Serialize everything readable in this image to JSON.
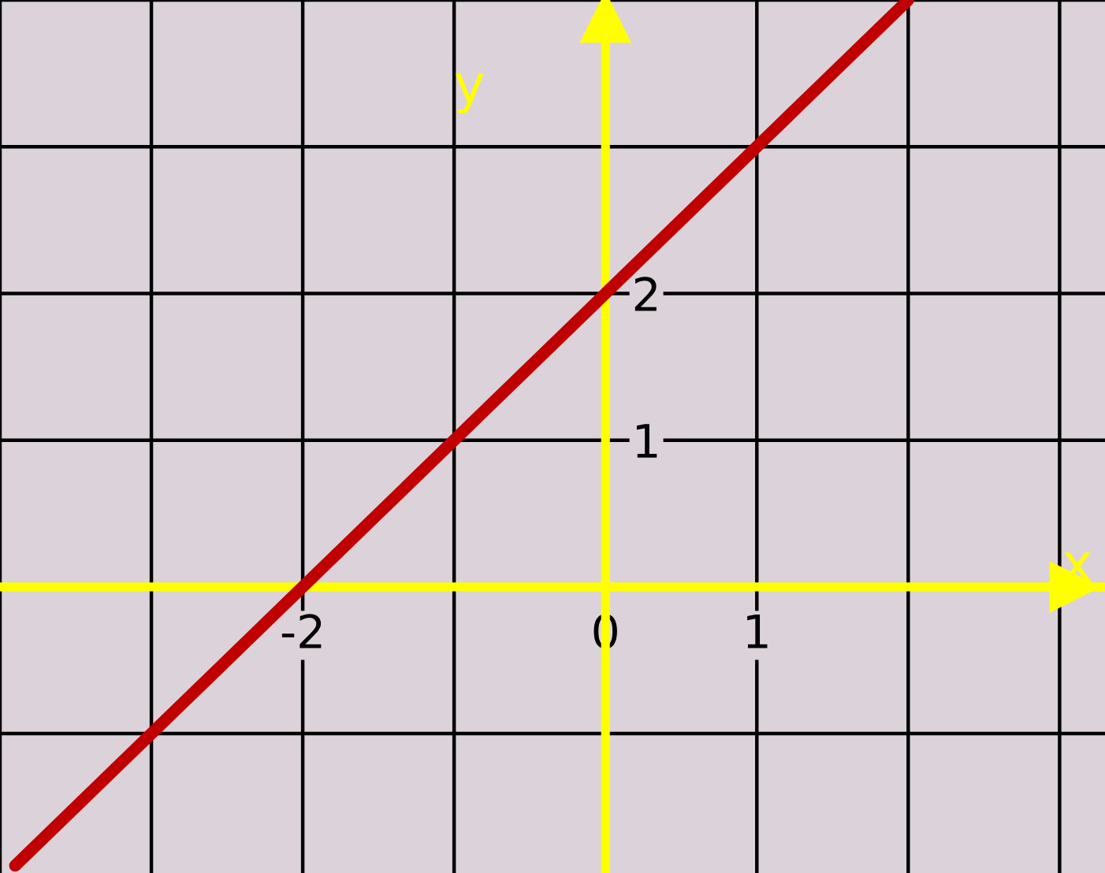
{
  "chart_data": {
    "type": "line",
    "xlabel": "x",
    "ylabel": "y",
    "x": [
      -3.9,
      2
    ],
    "series": [
      {
        "color": "#c00000",
        "values": [
          -1.9,
          4
        ]
      }
    ],
    "xlim": [
      -4,
      3.3
    ],
    "ylim": [
      -1.95,
      4
    ],
    "xticks": [
      {
        "value": -4,
        "label": null
      },
      {
        "value": -3,
        "label": null
      },
      {
        "value": -2,
        "label": "-2"
      },
      {
        "value": -1,
        "label": null
      },
      {
        "value": 0,
        "label": "0"
      },
      {
        "value": 1,
        "label": "1"
      },
      {
        "value": 2,
        "label": null
      },
      {
        "value": 3,
        "label": null
      }
    ],
    "yticks": [
      {
        "value": -1,
        "label": null
      },
      {
        "value": 0,
        "label": null
      },
      1,
      2,
      {
        "value": 3,
        "label": null
      },
      {
        "value": 4,
        "label": null
      }
    ],
    "grid": true,
    "marker": "none",
    "line_style": "solid",
    "legend": false
  }
}
